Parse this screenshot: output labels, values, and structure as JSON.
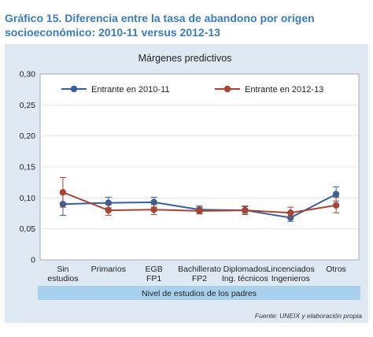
{
  "figure": {
    "title_line1": "Gráfico 15. Diferencia entre la tasa de abandono por origen",
    "title_line2": "socioeconómico: 2010-11 versus 2012-13",
    "source": "Fuente: UNEIX y elaboración propia"
  },
  "chart_data": {
    "type": "line",
    "title": "Márgenes predictivos",
    "xlabel": "Nivel de estudios de los padres",
    "ylabel": "",
    "categories": [
      [
        "Sin",
        "estudios"
      ],
      [
        "Primarios"
      ],
      [
        "EGB",
        "FP1"
      ],
      [
        "Bachillerato",
        "FP2"
      ],
      [
        "Diplomados",
        "Ing. técnicos"
      ],
      [
        "Lincenciados",
        "Ingenieros"
      ],
      [
        "Otros"
      ]
    ],
    "ylim": [
      0,
      0.3
    ],
    "yticks": [
      0,
      0.05,
      0.1,
      0.15,
      0.2,
      0.25,
      0.3
    ],
    "ytick_labels": [
      "0",
      "0,05",
      "0,10",
      "0,15",
      "0,20",
      "0,25",
      "0,30"
    ],
    "grid": true,
    "legend": "top",
    "error_bars": true,
    "series": [
      {
        "name": "Entrante en 2010-11",
        "color": "#36609a",
        "values": [
          0.09,
          0.092,
          0.093,
          0.081,
          0.08,
          0.068,
          0.106
        ],
        "lower": [
          0.072,
          0.084,
          0.085,
          0.076,
          0.075,
          0.062,
          0.095
        ],
        "upper": [
          0.108,
          0.101,
          0.101,
          0.087,
          0.086,
          0.075,
          0.118
        ]
      },
      {
        "name": "Entrante en 2012-13",
        "color": "#a84433",
        "values": [
          0.109,
          0.08,
          0.081,
          0.079,
          0.08,
          0.076,
          0.088
        ],
        "lower": [
          0.085,
          0.072,
          0.073,
          0.074,
          0.073,
          0.068,
          0.076
        ],
        "upper": [
          0.133,
          0.089,
          0.089,
          0.085,
          0.087,
          0.085,
          0.101
        ]
      }
    ]
  }
}
